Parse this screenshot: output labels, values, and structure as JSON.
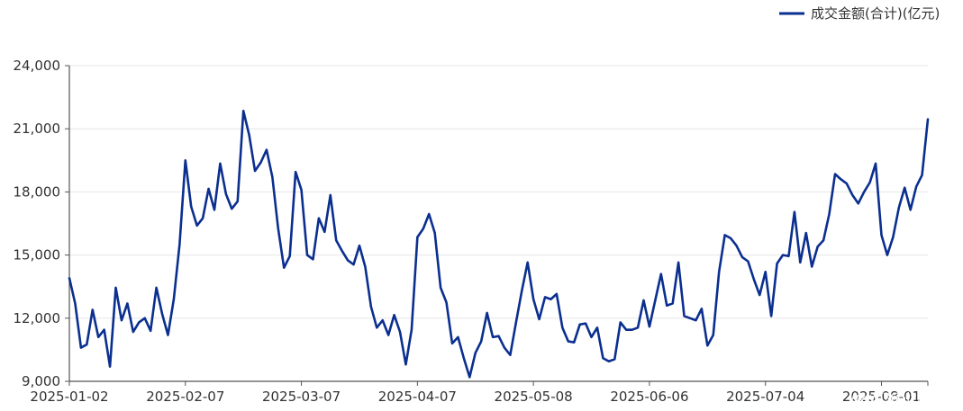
{
  "chart_data": {
    "type": "line",
    "title": "",
    "xlabel": "",
    "ylabel": "",
    "ylim": [
      9000,
      24000
    ],
    "y_ticks": [
      9000,
      12000,
      15000,
      18000,
      21000,
      24000
    ],
    "y_tick_labels": [
      "9,000",
      "12,000",
      "15,000",
      "18,000",
      "21,000",
      "24,000"
    ],
    "x_tick_labels": [
      "2025-01-02",
      "2025-02-07",
      "2025-03-07",
      "2025-04-07",
      "2025-05-08",
      "2025-06-06",
      "2025-07-04",
      "2025-08-01"
    ],
    "x_tick_indices": [
      0,
      20,
      40,
      60,
      80,
      100,
      120,
      140
    ],
    "legend": {
      "position": "top-right",
      "label": "成交金额(合计)(亿元)"
    },
    "grid": true,
    "series": [
      {
        "name": "成交金额(合计)(亿元)",
        "color": "#0b2f8f",
        "values": [
          13900,
          12700,
          10600,
          10750,
          12400,
          11100,
          11450,
          9700,
          13450,
          11900,
          12700,
          11350,
          11800,
          12000,
          11400,
          13450,
          12200,
          11200,
          12900,
          15500,
          19500,
          17300,
          16400,
          16750,
          18150,
          17150,
          19350,
          17900,
          17200,
          17550,
          21850,
          20700,
          19000,
          19400,
          20000,
          18700,
          16250,
          14400,
          14950,
          18950,
          18100,
          15000,
          14800,
          16750,
          16100,
          17850,
          15700,
          15200,
          14750,
          14550,
          15450,
          14450,
          12550,
          11550,
          11900,
          11200,
          12150,
          11350,
          9800,
          11450,
          15850,
          16250,
          16950,
          16050,
          13450,
          12750,
          10800,
          11100,
          10100,
          9200,
          10350,
          10900,
          12250,
          11100,
          11150,
          10600,
          10250,
          11800,
          13300,
          14650,
          12900,
          11950,
          13000,
          12900,
          13150,
          11550,
          10900,
          10850,
          11700,
          11750,
          11100,
          11550,
          10100,
          9950,
          10050,
          11800,
          11450,
          11450,
          11550,
          12850,
          11600,
          12850,
          14100,
          12600,
          12700,
          14650,
          12100,
          12000,
          11900,
          12450,
          10700,
          11200,
          14200,
          15950,
          15800,
          15450,
          14900,
          14700,
          13850,
          13100,
          14200,
          12100,
          14600,
          15000,
          14950,
          17050,
          14650,
          16050,
          14450,
          15400,
          15700,
          16950,
          18850,
          18600,
          18400,
          17850,
          17450,
          18000,
          18450,
          19350,
          15950,
          15000,
          15850,
          17250,
          18200,
          17150,
          18250,
          18800,
          21450
        ]
      }
    ]
  },
  "watermark": {
    "text": "www.365jz.com"
  }
}
